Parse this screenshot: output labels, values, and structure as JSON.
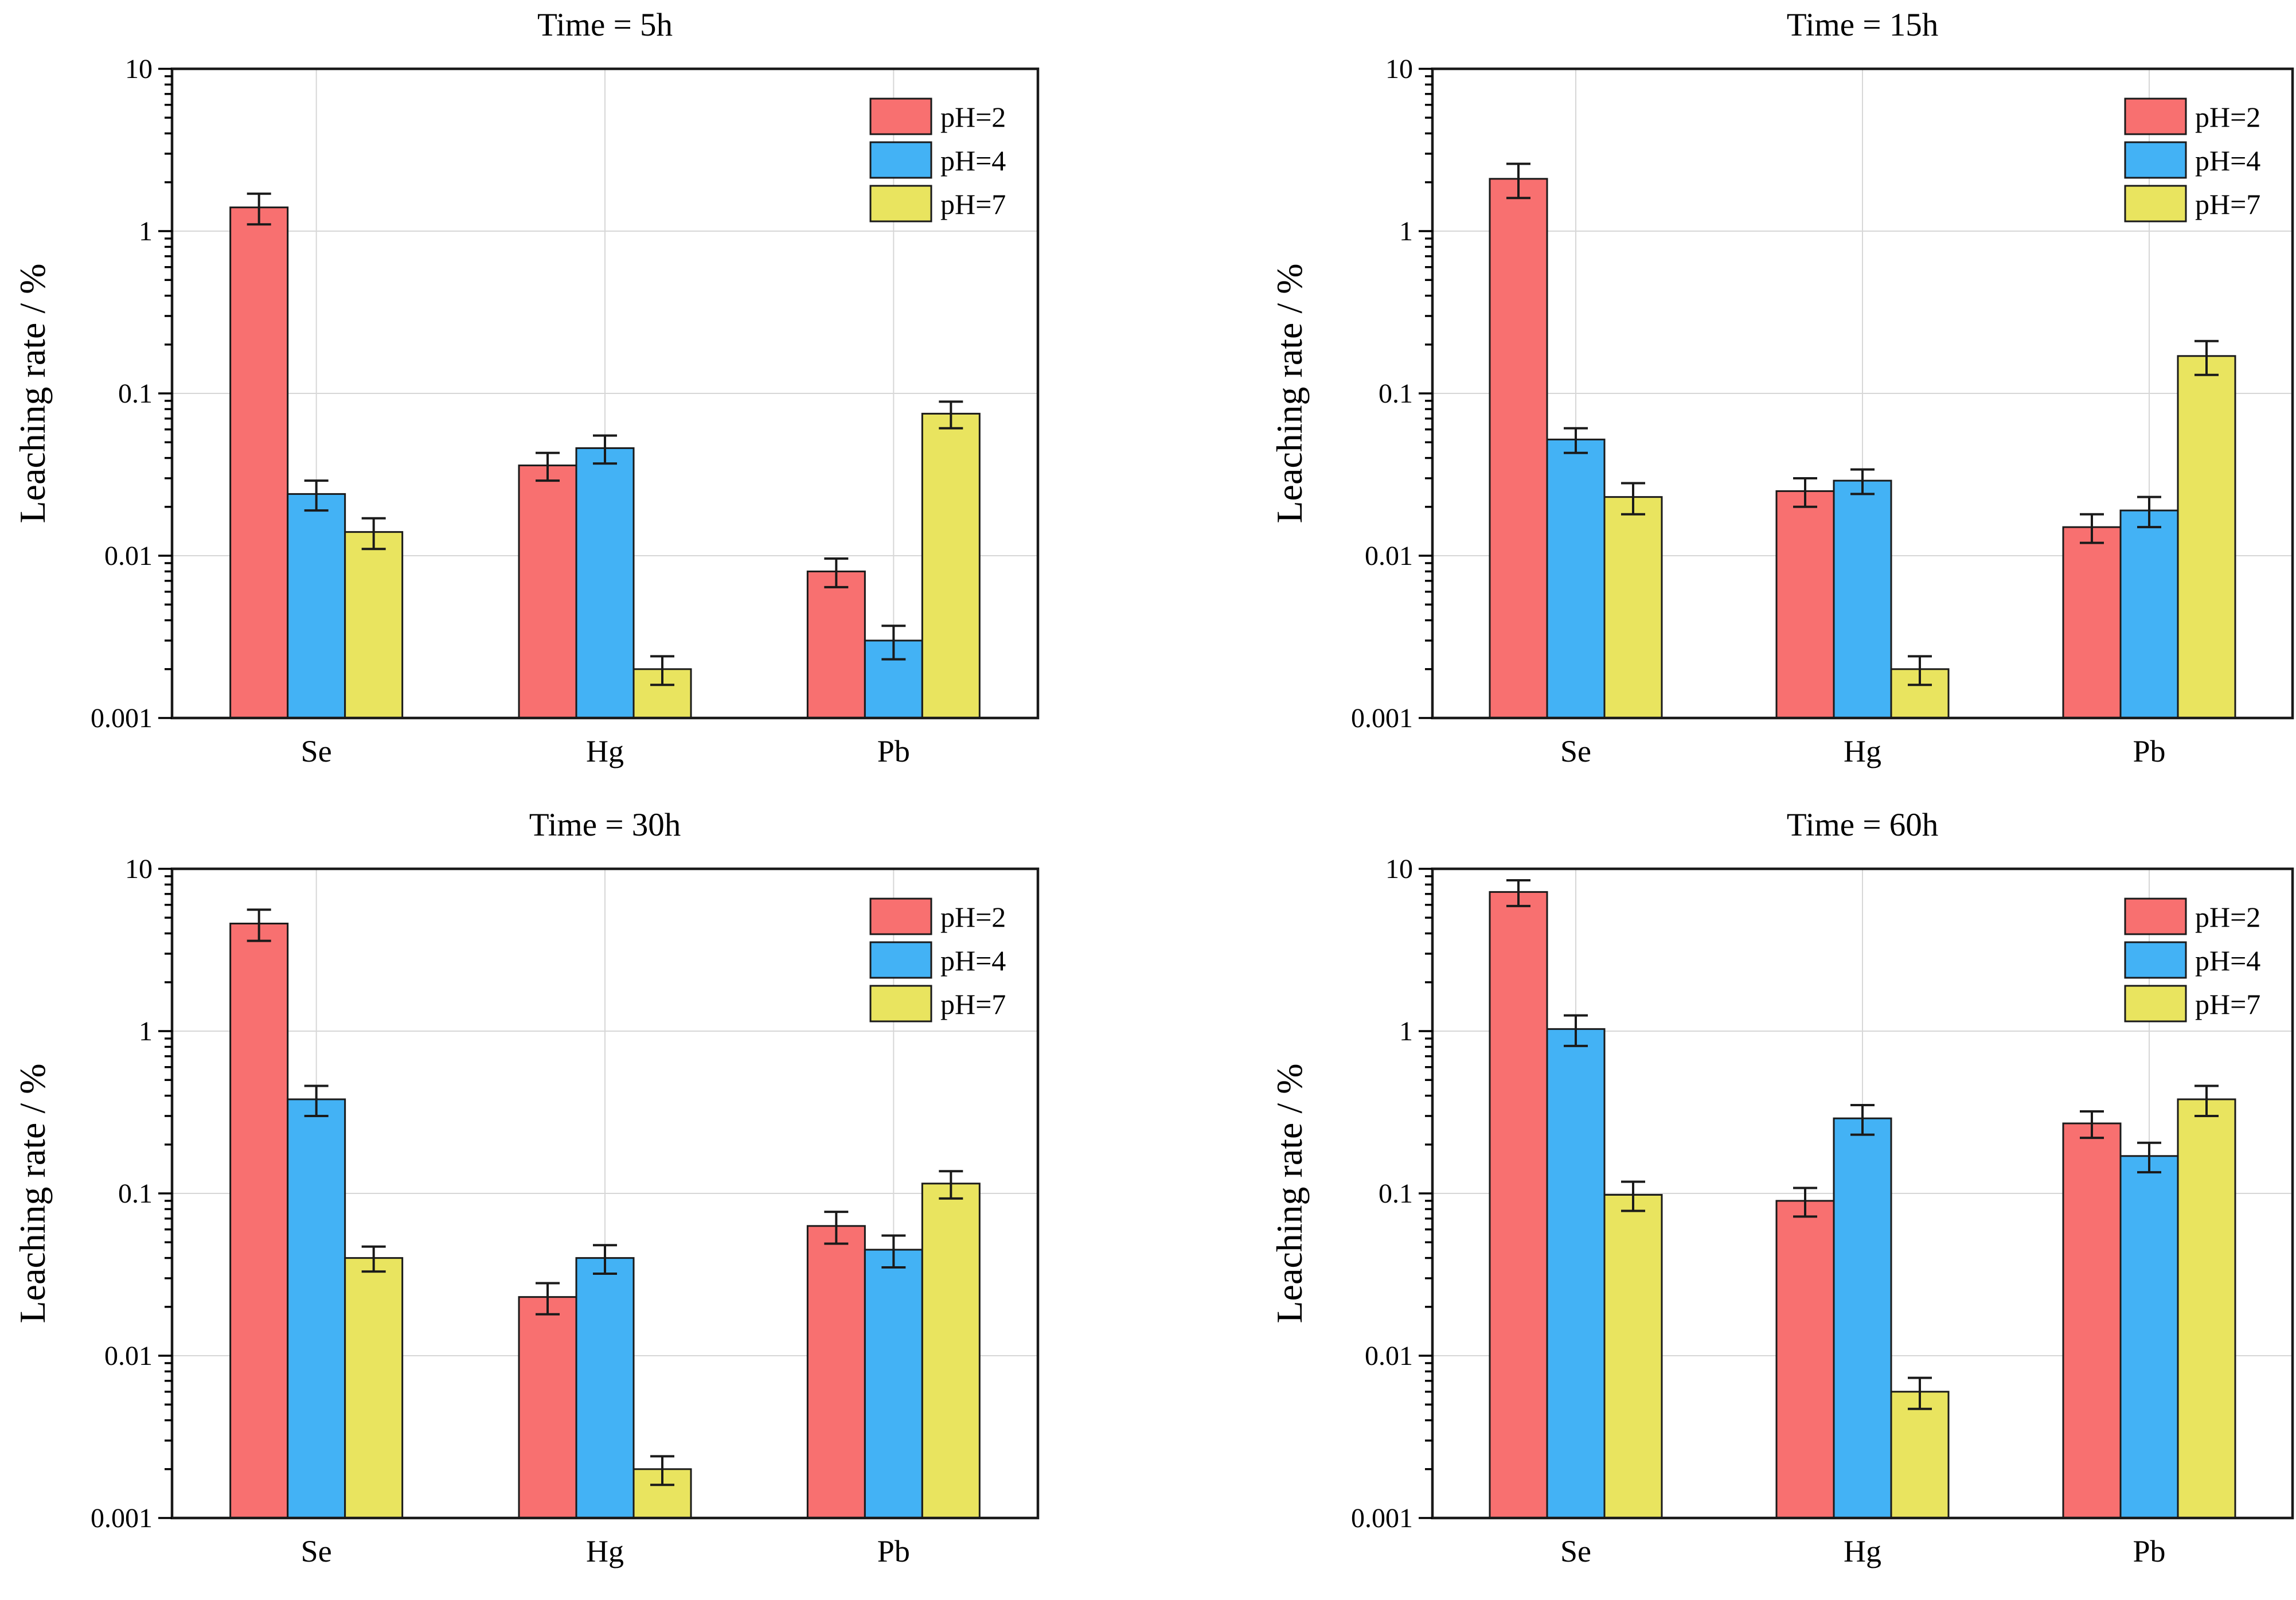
{
  "figure_title": "",
  "chart_data": {
    "type": "bar",
    "scale": "log",
    "grid": true,
    "legend_position": "top-right",
    "categories": [
      "Se",
      "Hg",
      "Pb"
    ],
    "series_names": [
      "pH=2",
      "pH=4",
      "pH=7"
    ],
    "series_colors": [
      "#f87070",
      "#43b2f5",
      "#e9e45f"
    ],
    "bar_outline_color": "#1a1a1a",
    "errorbar_color": "#1a1a1a",
    "grid_color": "#d7d7d7",
    "frame_color": "#1a1a1a",
    "y_axis": {
      "label": "Leaching rate / %",
      "min": 0.001,
      "max": 10,
      "ticks": [
        {
          "value": 10,
          "label": "10"
        },
        {
          "value": 1,
          "label": "1"
        },
        {
          "value": 0.1,
          "label": "0.1"
        },
        {
          "value": 0.01,
          "label": "0.01"
        },
        {
          "value": 0.001,
          "label": "0.001"
        }
      ]
    },
    "panels": [
      {
        "title": "Time = 5h",
        "series": [
          {
            "name": "pH=2",
            "values": [
              1.4,
              0.036,
              0.008
            ],
            "errors": [
              0.3,
              0.007,
              0.0016
            ]
          },
          {
            "name": "pH=4",
            "values": [
              0.024,
              0.046,
              0.003
            ],
            "errors": [
              0.005,
              0.009,
              0.0007
            ]
          },
          {
            "name": "pH=7",
            "values": [
              0.014,
              0.002,
              0.075
            ],
            "errors": [
              0.003,
              0.0004,
              0.014
            ]
          }
        ]
      },
      {
        "title": "Time = 15h",
        "series": [
          {
            "name": "pH=2",
            "values": [
              2.1,
              0.025,
              0.015
            ],
            "errors": [
              0.5,
              0.005,
              0.003
            ]
          },
          {
            "name": "pH=4",
            "values": [
              0.052,
              0.029,
              0.019
            ],
            "errors": [
              0.009,
              0.005,
              0.004
            ]
          },
          {
            "name": "pH=7",
            "values": [
              0.023,
              0.002,
              0.17
            ],
            "errors": [
              0.005,
              0.0004,
              0.04
            ]
          }
        ]
      },
      {
        "title": "Time = 30h",
        "series": [
          {
            "name": "pH=2",
            "values": [
              4.6,
              0.023,
              0.063
            ],
            "errors": [
              1.0,
              0.005,
              0.014
            ]
          },
          {
            "name": "pH=4",
            "values": [
              0.38,
              0.04,
              0.045
            ],
            "errors": [
              0.08,
              0.008,
              0.01
            ]
          },
          {
            "name": "pH=7",
            "values": [
              0.04,
              0.002,
              0.115
            ],
            "errors": [
              0.007,
              0.0004,
              0.022
            ]
          }
        ]
      },
      {
        "title": "Time = 60h",
        "series": [
          {
            "name": "pH=2",
            "values": [
              7.2,
              0.09,
              0.27
            ],
            "errors": [
              1.3,
              0.018,
              0.05
            ]
          },
          {
            "name": "pH=4",
            "values": [
              1.03,
              0.29,
              0.17
            ],
            "errors": [
              0.22,
              0.06,
              0.035
            ]
          },
          {
            "name": "pH=7",
            "values": [
              0.098,
              0.006,
              0.38
            ],
            "errors": [
              0.02,
              0.0013,
              0.08
            ]
          }
        ]
      }
    ]
  }
}
